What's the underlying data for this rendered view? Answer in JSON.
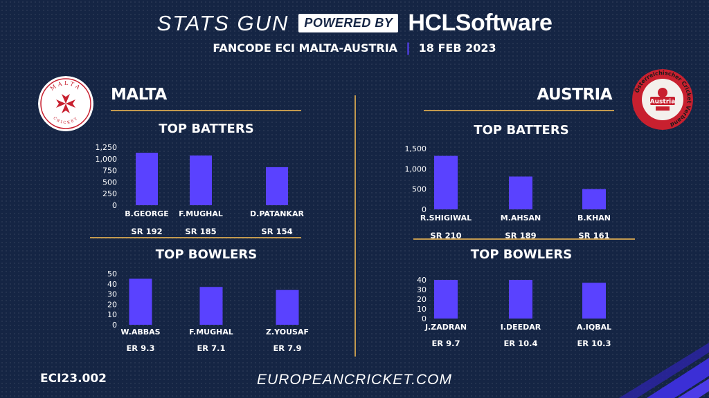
{
  "header": {
    "brand": "STATS GUN",
    "powered_by": "POWERED BY",
    "sponsor": "HCLSoftware",
    "match": "FANCODE ECI MALTA-AUSTRIA",
    "date": "18 FEB 2023"
  },
  "teams": {
    "malta": {
      "name": "MALTA",
      "logo_text_top": "MALTA",
      "logo_text_bottom": "CRICKET",
      "batters_title": "TOP BATTERS",
      "bowlers_title": "TOP BOWLERS"
    },
    "austria": {
      "name": "AUSTRIA",
      "logo_text": "Österreichischer Cricket Verband",
      "logo_badge": "Austria",
      "batters_title": "TOP BATTERS",
      "bowlers_title": "TOP BOWLERS"
    }
  },
  "footer": {
    "code": "ECI23.002",
    "website": "EUROPEANCRICKET.COM"
  },
  "colors": {
    "background": "#152544",
    "bar": "#5a42ff",
    "gold": "#c39a4f",
    "malta_red": "#c8202f",
    "austria_red": "#c8202f"
  },
  "chart_data": [
    {
      "type": "bar",
      "id": "malta-batters",
      "categories": [
        "B.GEORGE",
        "F.MUGHAL",
        "D.PATANKAR"
      ],
      "values": [
        1130,
        1070,
        820
      ],
      "sublabels": [
        "SR 192",
        "SR 185",
        "SR 154"
      ],
      "ylim": [
        0,
        1250
      ],
      "yticks": [
        0,
        250,
        500,
        750,
        1000,
        1250
      ],
      "ytick_labels": [
        "0",
        "250",
        "500",
        "750",
        "1,000",
        "1,250"
      ],
      "grid": false
    },
    {
      "type": "bar",
      "id": "malta-bowlers",
      "categories": [
        "W.ABBAS",
        "F.MUGHAL",
        "Z.YOUSAF"
      ],
      "values": [
        45,
        37,
        34
      ],
      "sublabels": [
        "ER 9.3",
        "ER 7.1",
        "ER 7.9"
      ],
      "ylim": [
        0,
        50
      ],
      "yticks": [
        0,
        10,
        20,
        30,
        40,
        50
      ],
      "ytick_labels": [
        "0",
        "10",
        "20",
        "30",
        "40",
        "50"
      ],
      "grid": false
    },
    {
      "type": "bar",
      "id": "austria-batters",
      "categories": [
        "R.SHIGIWAL",
        "M.AHSAN",
        "B.KHAN"
      ],
      "values": [
        1320,
        810,
        500
      ],
      "sublabels": [
        "SR 210",
        "SR 189",
        "SR 161"
      ],
      "ylim": [
        0,
        1500
      ],
      "yticks": [
        0,
        500,
        1000,
        1500
      ],
      "ytick_labels": [
        "0",
        "500",
        "1,000",
        "1,500"
      ],
      "grid": false
    },
    {
      "type": "bar",
      "id": "austria-bowlers",
      "categories": [
        "J.ZADRAN",
        "I.DEEDAR",
        "A.IQBAL"
      ],
      "values": [
        40,
        40,
        37
      ],
      "sublabels": [
        "ER 9.7",
        "ER 10.4",
        "ER 10.3"
      ],
      "ylim": [
        0,
        40
      ],
      "yticks": [
        0,
        10,
        20,
        30,
        40
      ],
      "ytick_labels": [
        "0",
        "10",
        "20",
        "30",
        "40"
      ],
      "grid": false
    }
  ]
}
